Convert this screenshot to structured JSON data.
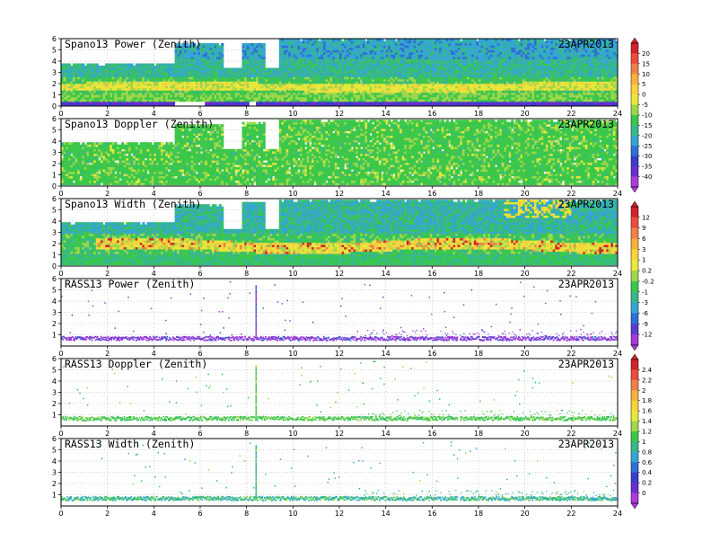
{
  "chart_data": {
    "type": "heatmap",
    "date": "23APR2013",
    "xlim": [
      0,
      24
    ],
    "x_ticks": [
      0,
      2,
      4,
      6,
      8,
      10,
      12,
      14,
      16,
      18,
      20,
      22,
      24
    ],
    "ylim": [
      0,
      6
    ],
    "y_ticks": [
      0,
      1,
      2,
      3,
      4,
      5,
      6
    ],
    "grid": true,
    "panels": [
      {
        "title": "Spano13 Power (Zenith)",
        "y_ticks": [
          0,
          1,
          2,
          3,
          4,
          5,
          6
        ],
        "kind": "wind",
        "variable": "power",
        "colorbar": 0,
        "data_gaps": [
          [
            4.8,
            6.1,
            0,
            0.3
          ],
          [
            6.9,
            7.7,
            3.3,
            6
          ],
          [
            8.05,
            8.35,
            0,
            0.3
          ],
          [
            8.75,
            9.3,
            3.3,
            6
          ]
        ]
      },
      {
        "title": "Spano13 Doppler (Zenith)",
        "y_ticks": [
          0,
          1,
          2,
          3,
          4,
          5,
          6
        ],
        "kind": "wind",
        "variable": "doppler",
        "colorbar": 0
      },
      {
        "title": "Spano13 Width (Zenith)",
        "y_ticks": [
          0,
          1,
          2,
          3,
          4,
          5,
          6
        ],
        "kind": "wind",
        "variable": "width",
        "colorbar": 1
      },
      {
        "title": "RASS13 Power (Zenith)",
        "y_ticks": [
          1,
          2,
          3,
          4,
          5,
          6
        ],
        "kind": "rass",
        "variable": "power",
        "colorbar": 1
      },
      {
        "title": "RASS13 Doppler (Zenith)",
        "y_ticks": [
          1,
          2,
          3,
          4,
          5,
          6
        ],
        "kind": "rass",
        "variable": "doppler",
        "colorbar": 2
      },
      {
        "title": "RASS13 Width (Zenith)",
        "y_ticks": [
          1,
          2,
          3,
          4,
          5,
          6
        ],
        "kind": "rass",
        "variable": "width",
        "colorbar": 2
      }
    ],
    "colorbars": [
      {
        "labels": [
          "20",
          "15",
          "10",
          "5",
          "0",
          "-5",
          "-10",
          "-15",
          "-20",
          "-25",
          "-30",
          "-35",
          "-40"
        ],
        "colors": [
          "#d2232a",
          "#ed4c3a",
          "#f08048",
          "#f7b03c",
          "#fad23c",
          "#e8e83a",
          "#9ed84a",
          "#3bc84a",
          "#35b88c",
          "#34a6d3",
          "#2d70d6",
          "#3a3cd0",
          "#6a2ed0",
          "#b03ad8"
        ]
      },
      {
        "labels": [
          "12",
          "9",
          "6",
          "3",
          "1",
          "0.2",
          "-0.2",
          "-1",
          "-3",
          "-6",
          "-9",
          "-12"
        ],
        "colors": [
          "#d2232a",
          "#ed4c3a",
          "#f08048",
          "#f7b03c",
          "#fad23c",
          "#e8e83a",
          "#9ed84a",
          "#3bc84a",
          "#35b88c",
          "#34a6d3",
          "#2d70d6",
          "#5a3cd0",
          "#a83ad8"
        ]
      },
      {
        "labels": [
          "2.4",
          "2.2",
          "2",
          "1.8",
          "1.6",
          "1.4",
          "1.2",
          "1",
          "0.8",
          "0.6",
          "0.4",
          "0.2",
          "0"
        ],
        "colors": [
          "#d2232a",
          "#ed4c3a",
          "#f08048",
          "#f7b03c",
          "#fad23c",
          "#e8e83a",
          "#9ed84a",
          "#3bc84a",
          "#35b88c",
          "#34a6d3",
          "#2d70d6",
          "#3a3cd0",
          "#6a2ed0",
          "#b03ad8"
        ]
      }
    ]
  }
}
